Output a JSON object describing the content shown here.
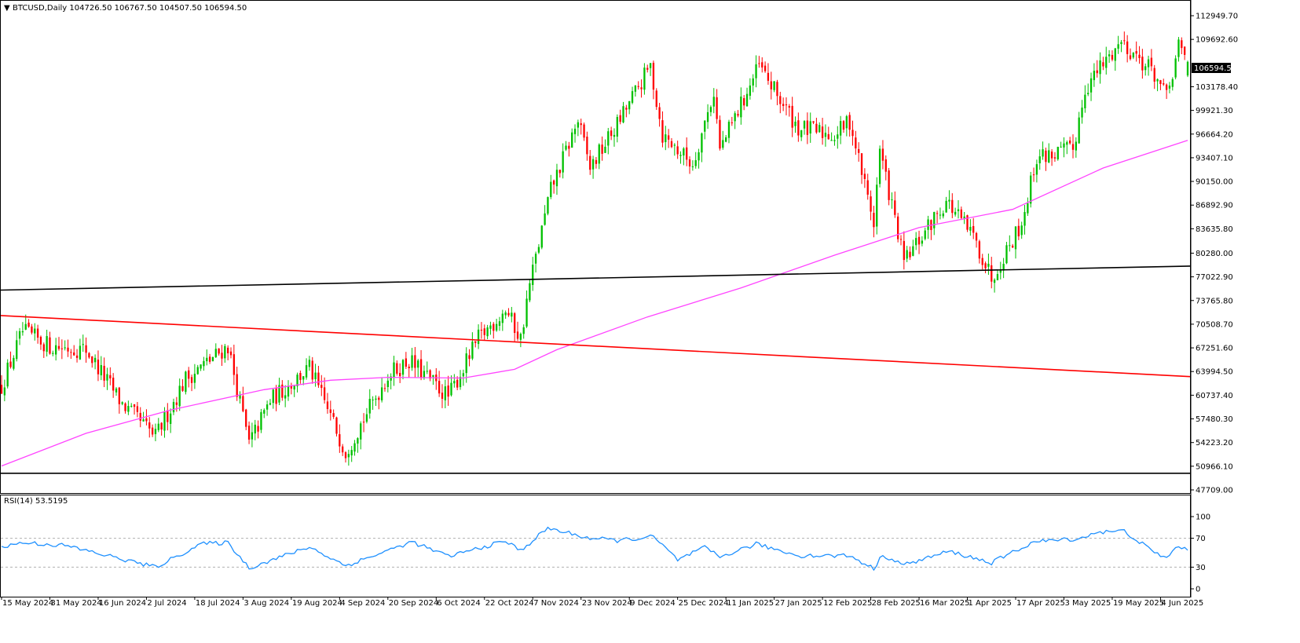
{
  "main_panel": {
    "header": {
      "arrow": "▼",
      "title": "BTCUSD,Daily  104726.50 106767.50 104507.50 106594.50"
    },
    "price_ticks": [
      "112949.70",
      "109692.60",
      "106594.50",
      "103178.40",
      "99921.30",
      "96664.20",
      "93407.10",
      "90150.00",
      "86892.90",
      "83635.80",
      "80280.00",
      "77022.90",
      "73765.80",
      "70508.70",
      "67251.60",
      "63994.50",
      "60737.40",
      "57480.30",
      "54223.20",
      "50966.10",
      "47709.00"
    ],
    "price_range": [
      47709.0,
      112949.7
    ],
    "current_price_label": "106594.50"
  },
  "rsi_panel": {
    "label": "RSI(14) 53.5195",
    "ticks": [
      "100",
      "70",
      "30",
      "0"
    ]
  },
  "x_axis": {
    "labels": [
      "15 May 2024",
      "31 May 2024",
      "16 Jun 2024",
      "2 Jul 2024",
      "18 Jul 2024",
      "3 Aug 2024",
      "19 Aug 2024",
      "4 Sep 2024",
      "20 Sep 2024",
      "6 Oct 2024",
      "22 Oct 2024",
      "7 Nov 2024",
      "23 Nov 2024",
      "9 Dec 2024",
      "25 Dec 2024",
      "11 Jan 2025",
      "27 Jan 2025",
      "12 Feb 2025",
      "28 Feb 2025",
      "16 Mar 2025",
      "1 Apr 2025",
      "17 Apr 2025",
      "3 May 2025",
      "19 May 2025",
      "4 Jun 2025"
    ]
  },
  "colors": {
    "bull": "#00c000",
    "bear": "#ff0000",
    "ma": "#ff44ff",
    "trendline_black": "#000000",
    "trendline_red": "#ff0000",
    "rsi": "#1e90ff",
    "label_box": "#000000"
  },
  "chart_data": {
    "type": "candlestick",
    "symbol": "BTCUSD",
    "timeframe": "Daily",
    "last_bar": {
      "open": 104726.5,
      "high": 106767.5,
      "low": 104507.5,
      "close": 106594.5
    },
    "ylim": [
      47709.0,
      112949.7
    ],
    "anchors": [
      {
        "date": "2024-05-15",
        "close": 62000
      },
      {
        "date": "2024-05-22",
        "close": 69500
      },
      {
        "date": "2024-05-31",
        "close": 67500
      },
      {
        "date": "2024-06-12",
        "close": 67000
      },
      {
        "date": "2024-06-24",
        "close": 59500
      },
      {
        "date": "2024-07-05",
        "close": 55000
      },
      {
        "date": "2024-07-15",
        "close": 63000
      },
      {
        "date": "2024-07-29",
        "close": 67500
      },
      {
        "date": "2024-08-05",
        "close": 54000
      },
      {
        "date": "2024-08-12",
        "close": 60000
      },
      {
        "date": "2024-08-25",
        "close": 64500
      },
      {
        "date": "2024-09-06",
        "close": 53000
      },
      {
        "date": "2024-09-20",
        "close": 63500
      },
      {
        "date": "2024-09-27",
        "close": 65500
      },
      {
        "date": "2024-10-10",
        "close": 60500
      },
      {
        "date": "2024-10-20",
        "close": 68500
      },
      {
        "date": "2024-10-29",
        "close": 72500
      },
      {
        "date": "2024-11-03",
        "close": 68500
      },
      {
        "date": "2024-11-06",
        "close": 76000
      },
      {
        "date": "2024-11-13",
        "close": 89000
      },
      {
        "date": "2024-11-22",
        "close": 98500
      },
      {
        "date": "2024-11-26",
        "close": 92000
      },
      {
        "date": "2024-12-05",
        "close": 98000
      },
      {
        "date": "2024-12-16",
        "close": 106000
      },
      {
        "date": "2024-12-20",
        "close": 96500
      },
      {
        "date": "2024-12-30",
        "close": 92500
      },
      {
        "date": "2025-01-06",
        "close": 102500
      },
      {
        "date": "2025-01-08",
        "close": 94500
      },
      {
        "date": "2025-01-21",
        "close": 106000
      },
      {
        "date": "2025-01-27",
        "close": 102000
      },
      {
        "date": "2025-02-03",
        "close": 97500
      },
      {
        "date": "2025-02-15",
        "close": 96500
      },
      {
        "date": "2025-02-20",
        "close": 98500
      },
      {
        "date": "2025-02-28",
        "close": 84500
      },
      {
        "date": "2025-03-02",
        "close": 94500
      },
      {
        "date": "2025-03-10",
        "close": 79000
      },
      {
        "date": "2025-03-24",
        "close": 87500
      },
      {
        "date": "2025-04-02",
        "close": 82500
      },
      {
        "date": "2025-04-08",
        "close": 77000
      },
      {
        "date": "2025-04-18",
        "close": 84500
      },
      {
        "date": "2025-04-23",
        "close": 93500
      },
      {
        "date": "2025-05-05",
        "close": 94500
      },
      {
        "date": "2025-05-09",
        "close": 103000
      },
      {
        "date": "2025-05-21",
        "close": 109500
      },
      {
        "date": "2025-06-01",
        "close": 105000
      },
      {
        "date": "2025-06-05",
        "close": 101500
      },
      {
        "date": "2025-06-09",
        "close": 108500
      },
      {
        "date": "2025-06-12",
        "close": 106594.5
      }
    ],
    "indicators": {
      "moving_average": {
        "color": "#ff44ff",
        "points": [
          {
            "date": "2024-05-15",
            "value": 51000
          },
          {
            "date": "2024-06-12",
            "value": 55500
          },
          {
            "date": "2024-07-10",
            "value": 58700
          },
          {
            "date": "2024-08-10",
            "value": 61500
          },
          {
            "date": "2024-09-01",
            "value": 62800
          },
          {
            "date": "2024-09-20",
            "value": 63200
          },
          {
            "date": "2024-10-15",
            "value": 63100
          },
          {
            "date": "2024-11-01",
            "value": 64300
          },
          {
            "date": "2024-11-15",
            "value": 67000
          },
          {
            "date": "2024-12-15",
            "value": 71500
          },
          {
            "date": "2025-01-15",
            "value": 75500
          },
          {
            "date": "2025-02-15",
            "value": 80000
          },
          {
            "date": "2025-03-15",
            "value": 83800
          },
          {
            "date": "2025-04-15",
            "value": 86300
          },
          {
            "date": "2025-05-15",
            "value": 92000
          },
          {
            "date": "2025-06-12",
            "value": 95800
          }
        ]
      },
      "rsi": {
        "period": 14,
        "last_value": 53.5195,
        "levels": [
          70,
          30
        ],
        "points": [
          {
            "date": "2024-05-15",
            "value": 58
          },
          {
            "date": "2024-05-22",
            "value": 64
          },
          {
            "date": "2024-06-05",
            "value": 60
          },
          {
            "date": "2024-06-25",
            "value": 40
          },
          {
            "date": "2024-07-05",
            "value": 30
          },
          {
            "date": "2024-07-20",
            "value": 62
          },
          {
            "date": "2024-07-29",
            "value": 64
          },
          {
            "date": "2024-08-05",
            "value": 29
          },
          {
            "date": "2024-08-25",
            "value": 58
          },
          {
            "date": "2024-09-06",
            "value": 32
          },
          {
            "date": "2024-09-28",
            "value": 65
          },
          {
            "date": "2024-10-10",
            "value": 45
          },
          {
            "date": "2024-10-29",
            "value": 66
          },
          {
            "date": "2024-11-03",
            "value": 53
          },
          {
            "date": "2024-11-12",
            "value": 84
          },
          {
            "date": "2024-11-26",
            "value": 70
          },
          {
            "date": "2024-12-05",
            "value": 67
          },
          {
            "date": "2024-12-17",
            "value": 72
          },
          {
            "date": "2024-12-25",
            "value": 40
          },
          {
            "date": "2025-01-03",
            "value": 57
          },
          {
            "date": "2025-01-08",
            "value": 44
          },
          {
            "date": "2025-01-20",
            "value": 62
          },
          {
            "date": "2025-02-03",
            "value": 46
          },
          {
            "date": "2025-02-20",
            "value": 46
          },
          {
            "date": "2025-02-28",
            "value": 28
          },
          {
            "date": "2025-03-03",
            "value": 47
          },
          {
            "date": "2025-03-10",
            "value": 33
          },
          {
            "date": "2025-03-25",
            "value": 52
          },
          {
            "date": "2025-04-08",
            "value": 36
          },
          {
            "date": "2025-04-22",
            "value": 65
          },
          {
            "date": "2025-05-08",
            "value": 70
          },
          {
            "date": "2025-05-12",
            "value": 78
          },
          {
            "date": "2025-05-22",
            "value": 80
          },
          {
            "date": "2025-06-01",
            "value": 50
          },
          {
            "date": "2025-06-05",
            "value": 43
          },
          {
            "date": "2025-06-09",
            "value": 60
          },
          {
            "date": "2025-06-12",
            "value": 53.5
          }
        ]
      }
    },
    "trendlines": [
      {
        "color": "#000000",
        "from": {
          "date": "2024-05-15",
          "price": 75200
        },
        "to": {
          "date": "2025-06-12",
          "price": 78500
        }
      },
      {
        "color": "#ff0000",
        "from": {
          "date": "2024-05-15",
          "price": 71700
        },
        "to": {
          "date": "2025-06-12",
          "price": 63300
        }
      },
      {
        "color": "#000000",
        "horizontal": true,
        "price": 50000
      }
    ]
  }
}
